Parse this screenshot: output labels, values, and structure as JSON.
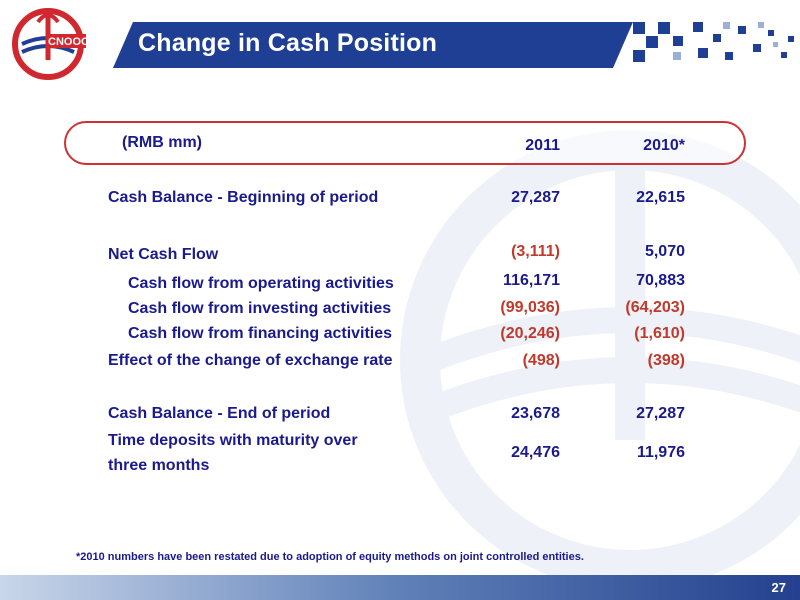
{
  "header": {
    "title": "Change in Cash Position",
    "logo_text": "CNOOC",
    "colors": {
      "title_bar": "#1f3f95",
      "logo_red": "#d0282e",
      "logo_blue": "#1f3f95"
    }
  },
  "table": {
    "unit_label": "(RMB mm)",
    "col_2011": "2011",
    "col_2010": "2010*",
    "rows": [
      {
        "label": "Cash Balance - Beginning of period",
        "v2011": "27,287",
        "v2010": "22,615"
      },
      {
        "label": "Net Cash Flow",
        "v2011": "(3,111)",
        "v2010": "5,070"
      },
      {
        "label": "Cash flow from operating activities",
        "v2011": "116,171",
        "v2010": "70,883"
      },
      {
        "label": "Cash flow from investing activities",
        "v2011": "(99,036)",
        "v2010": "(64,203)"
      },
      {
        "label": "Cash flow from financing activities",
        "v2011": "(20,246)",
        "v2010": "(1,610)"
      },
      {
        "label": "Effect of the change of exchange rate",
        "v2011": "(498)",
        "v2010": "(398)"
      },
      {
        "label": "Cash Balance - End of period",
        "v2011": "23,678",
        "v2010": "27,287"
      },
      {
        "label_line1": "Time deposits with maturity over",
        "label_line2": "three months",
        "v2011": "24,476",
        "v2010": "11,976"
      }
    ]
  },
  "footnote": "*2010 numbers  have been restated  due to adoption of equity methods on  joint controlled entities.",
  "page_number": "27"
}
